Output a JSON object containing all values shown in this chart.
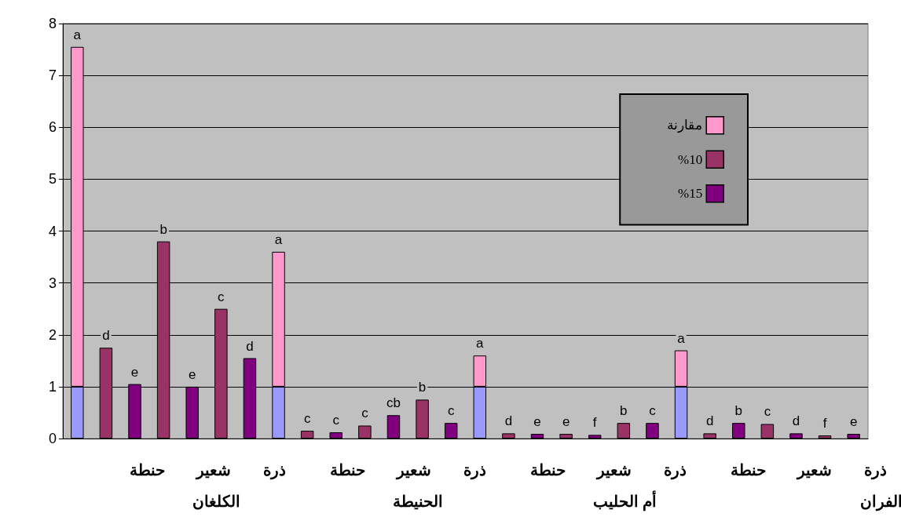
{
  "chart_data": {
    "type": "bar",
    "stacked": true,
    "categories": [
      null,
      null,
      null,
      null,
      null,
      null,
      null,
      null,
      null,
      null,
      null,
      null,
      null,
      null,
      null,
      null,
      null,
      null,
      null,
      null,
      null,
      null,
      null,
      null,
      null,
      null,
      null,
      null
    ],
    "series": [
      {
        "color": "#9999ff",
        "values": [
          1.0,
          null,
          null,
          null,
          null,
          null,
          null,
          1.0,
          null,
          null,
          null,
          null,
          null,
          null,
          1.0,
          null,
          null,
          null,
          null,
          null,
          null,
          1.0,
          null,
          null,
          null,
          null,
          null,
          null
        ]
      },
      {
        "name": "مقارنة",
        "color": "#ff99cc",
        "values": [
          6.55,
          null,
          null,
          null,
          null,
          null,
          null,
          2.6,
          null,
          null,
          null,
          null,
          null,
          null,
          0.6,
          null,
          null,
          null,
          null,
          null,
          null,
          0.7,
          null,
          null,
          null,
          null,
          null,
          null
        ],
        "value_labels": [
          "a",
          null,
          null,
          null,
          null,
          null,
          null,
          "a",
          null,
          null,
          null,
          null,
          null,
          null,
          "a",
          null,
          null,
          null,
          null,
          null,
          null,
          "a",
          null,
          null,
          null,
          null,
          null,
          null
        ]
      },
      {
        "name": "%10",
        "color": "#993366",
        "values": [
          null,
          1.75,
          null,
          3.8,
          null,
          2.5,
          null,
          null,
          0.15,
          null,
          0.25,
          null,
          0.75,
          null,
          null,
          0.1,
          null,
          0.09,
          null,
          0.3,
          null,
          null,
          0.1,
          null,
          0.28,
          null,
          0.06,
          null
        ],
        "value_labels": [
          null,
          "d",
          null,
          "b",
          null,
          "c",
          null,
          null,
          "c",
          null,
          "c",
          null,
          "b",
          null,
          null,
          "d",
          null,
          "e",
          null,
          "b",
          null,
          null,
          "d",
          null,
          "c",
          null,
          "f",
          null
        ]
      },
      {
        "name": "%15",
        "color": "#800080",
        "values": [
          null,
          null,
          1.05,
          null,
          1.0,
          null,
          1.55,
          null,
          null,
          0.12,
          null,
          0.45,
          null,
          0.3,
          null,
          null,
          0.09,
          null,
          0.07,
          null,
          0.3,
          null,
          null,
          0.3,
          null,
          0.1,
          null,
          0.09
        ],
        "value_labels": [
          null,
          null,
          "e",
          null,
          "e",
          null,
          "d",
          null,
          null,
          "c",
          null,
          "cb",
          null,
          "c",
          null,
          null,
          "e",
          null,
          "f",
          null,
          "c",
          null,
          null,
          "b",
          null,
          "d",
          null,
          "e"
        ]
      }
    ],
    "ylim": [
      0,
      8
    ],
    "yticks": [
      0,
      1,
      2,
      3,
      4,
      5,
      6,
      7,
      8
    ],
    "grid": "y",
    "legend": "top right",
    "annotations": [
      "حنطة",
      "شعير",
      "ذرة",
      "حنطة",
      "شعير",
      "ذرة",
      "حنطة",
      "شعير",
      "ذرة",
      "حنطة",
      "شعير",
      "ذرة",
      "الكلغان",
      "الحنيطة",
      "أم الحليب",
      "الفران"
    ]
  }
}
